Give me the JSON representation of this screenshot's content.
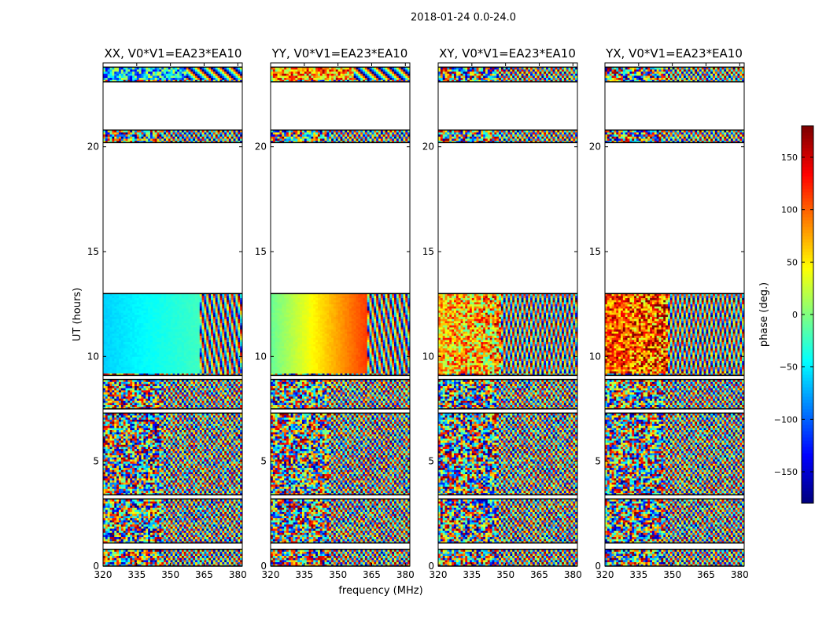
{
  "chart_data": {
    "type": "heatmap",
    "suptitle": "2018-01-24 0.0-24.0",
    "xlabel": "frequency (MHz)",
    "ylabel": "UT (hours)",
    "xlim": [
      320,
      382
    ],
    "ylim": [
      0,
      24
    ],
    "xticks": [
      320,
      335,
      350,
      365,
      380
    ],
    "yticks": [
      0,
      5,
      10,
      15,
      20
    ],
    "panels": [
      {
        "title": "XX, V0*V1=EA23*EA10",
        "pattern": "xx"
      },
      {
        "title": "YY, V0*V1=EA23*EA10",
        "pattern": "yy"
      },
      {
        "title": "XY, V0*V1=EA23*EA10",
        "pattern": "xy"
      },
      {
        "title": "YX, V0*V1=EA23*EA10",
        "pattern": "yx"
      }
    ],
    "data_bands_hours": [
      [
        0.0,
        0.8
      ],
      [
        1.1,
        3.2
      ],
      [
        3.4,
        7.3
      ],
      [
        7.5,
        8.9
      ],
      [
        9.1,
        13.0
      ],
      [
        20.2,
        20.8
      ],
      [
        23.1,
        23.8
      ]
    ],
    "colorbar": {
      "label": "phase (deg.)",
      "range": [
        -180,
        180
      ],
      "ticks": [
        -150,
        -100,
        -50,
        0,
        50,
        100,
        150
      ],
      "colormap": "jet"
    }
  }
}
